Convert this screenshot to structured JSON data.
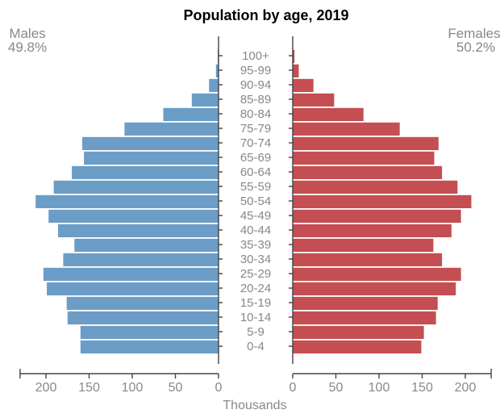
{
  "chart_data": {
    "type": "bar",
    "title": "Population by age, 2019",
    "xlabel": "Thousands",
    "left_label": "Males",
    "left_share": "49.8%",
    "right_label": "Females",
    "right_share": "50.2%",
    "categories": [
      "0-4",
      "5-9",
      "10-14",
      "15-19",
      "20-24",
      "25-29",
      "30-34",
      "35-39",
      "40-44",
      "45-49",
      "50-54",
      "55-59",
      "60-64",
      "65-69",
      "70-74",
      "75-79",
      "80-84",
      "85-89",
      "90-94",
      "95-99",
      "100+"
    ],
    "series": [
      {
        "name": "Males",
        "color": "#6b9dc6",
        "values": [
          160,
          160,
          175,
          176,
          199,
          203,
          180,
          167,
          186,
          197,
          212,
          191,
          170,
          156,
          158,
          109,
          64,
          31,
          11,
          3,
          1
        ]
      },
      {
        "name": "Females",
        "color": "#c44e52",
        "values": [
          149,
          152,
          166,
          168,
          189,
          195,
          173,
          163,
          184,
          195,
          207,
          191,
          173,
          164,
          169,
          124,
          82,
          48,
          24,
          7,
          2
        ]
      }
    ],
    "xticks": [
      0,
      50,
      100,
      150,
      200
    ],
    "xlim": [
      0,
      230
    ],
    "grid": false,
    "legend": "none"
  }
}
